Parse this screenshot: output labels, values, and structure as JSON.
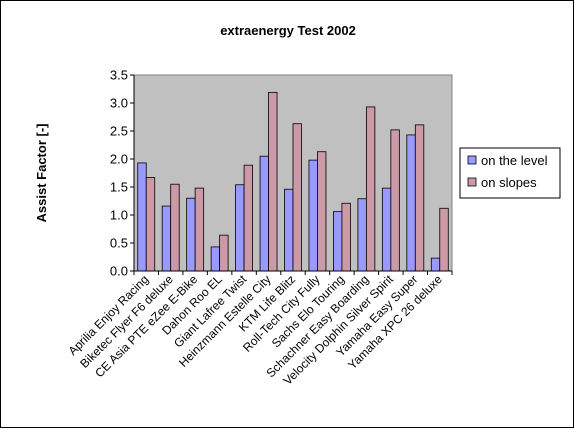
{
  "chart_data": {
    "type": "bar",
    "title": "extraenergy Test 2002",
    "xlabel": "",
    "ylabel": "Assist Factor [-]",
    "ylim": [
      0,
      3.5
    ],
    "yticks": [
      "0.0",
      "0.5",
      "1.0",
      "1.5",
      "2.0",
      "2.5",
      "3.0",
      "3.5"
    ],
    "grid": false,
    "legend_position": "right",
    "plot_background": "#c0c0c0",
    "categories": [
      "Aprilia Enjoy Racing",
      "Biketec Flyer F6 deluxe",
      "CE Asia PTE eZee E-Bike",
      "Dahon Roo EL",
      "Giant Lafree Twist",
      "Heinzmann Estelle City",
      "KTM Life Blitz",
      "Roll-Tech City Fully",
      "Sachs Elo Touring",
      "Schachner Easy Boarding",
      "Velocity Dolphin Silver Spirit",
      "Yamaha Easy Super",
      "Yamaha XPC 26 deluxe"
    ],
    "series": [
      {
        "name": "on the level",
        "color": "#9999ff",
        "values": [
          1.93,
          1.16,
          1.3,
          0.43,
          1.54,
          2.05,
          1.46,
          1.98,
          1.06,
          1.29,
          1.48,
          2.43,
          0.23
        ]
      },
      {
        "name": "on slopes",
        "color": "#cc99a6",
        "values": [
          1.67,
          1.55,
          1.48,
          0.64,
          1.89,
          3.19,
          2.63,
          2.13,
          1.21,
          2.93,
          2.52,
          2.61,
          1.12
        ]
      }
    ]
  }
}
